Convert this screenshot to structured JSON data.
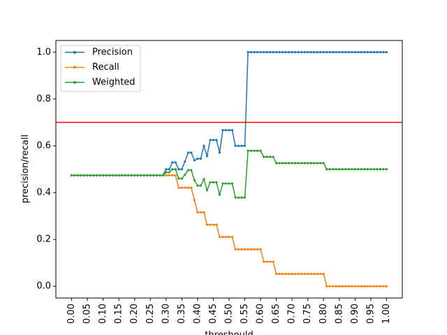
{
  "chart_data": {
    "type": "line",
    "title": "",
    "xlabel": "threshould",
    "ylabel": "precision/recall",
    "xlim": [
      -0.05,
      1.05
    ],
    "ylim": [
      -0.05,
      1.05
    ],
    "x_ticks": [
      0.0,
      0.05,
      0.1,
      0.15,
      0.2,
      0.25,
      0.3,
      0.35,
      0.4,
      0.45,
      0.5,
      0.55,
      0.6,
      0.65,
      0.7,
      0.75,
      0.8,
      0.85,
      0.9,
      0.95,
      1.0
    ],
    "x_tick_labels": [
      "0.00",
      "0.05",
      "0.10",
      "0.15",
      "0.20",
      "0.25",
      "0.30",
      "0.35",
      "0.40",
      "0.45",
      "0.50",
      "0.55",
      "0.60",
      "0.65",
      "0.70",
      "0.75",
      "0.80",
      "0.85",
      "0.90",
      "0.95",
      "1.00"
    ],
    "y_ticks": [
      0.0,
      0.2,
      0.4,
      0.6,
      0.8,
      1.0
    ],
    "y_tick_labels": [
      "0.0",
      "0.2",
      "0.4",
      "0.6",
      "0.8",
      "1.0"
    ],
    "grid": false,
    "legend_position": "top-left",
    "hline": {
      "y": 0.7,
      "color": "#ff0000"
    },
    "x": [
      0.0,
      0.01,
      0.02,
      0.03,
      0.04,
      0.05,
      0.06,
      0.07,
      0.08,
      0.09,
      0.1,
      0.11,
      0.12,
      0.13,
      0.14,
      0.15,
      0.16,
      0.17,
      0.18,
      0.19,
      0.2,
      0.21,
      0.22,
      0.23,
      0.24,
      0.25,
      0.26,
      0.27,
      0.28,
      0.29,
      0.3,
      0.31,
      0.32,
      0.33,
      0.34,
      0.35,
      0.36,
      0.37,
      0.38,
      0.39,
      0.4,
      0.41,
      0.42,
      0.43,
      0.44,
      0.45,
      0.46,
      0.47,
      0.48,
      0.49,
      0.5,
      0.51,
      0.52,
      0.53,
      0.54,
      0.55,
      0.56,
      0.57,
      0.58,
      0.59,
      0.6,
      0.61,
      0.62,
      0.63,
      0.64,
      0.65,
      0.66,
      0.67,
      0.68,
      0.69,
      0.7,
      0.71,
      0.72,
      0.73,
      0.74,
      0.75,
      0.76,
      0.77,
      0.78,
      0.79,
      0.8,
      0.81,
      0.82,
      0.83,
      0.84,
      0.85,
      0.86,
      0.87,
      0.88,
      0.89,
      0.9,
      0.91,
      0.92,
      0.93,
      0.94,
      0.95,
      0.96,
      0.97,
      0.98,
      0.99,
      1.0
    ],
    "series": [
      {
        "name": "Precision",
        "color": "#1f77b4",
        "values": [
          0.474,
          0.474,
          0.474,
          0.474,
          0.474,
          0.474,
          0.474,
          0.474,
          0.474,
          0.474,
          0.474,
          0.474,
          0.474,
          0.474,
          0.474,
          0.474,
          0.474,
          0.474,
          0.474,
          0.474,
          0.474,
          0.474,
          0.474,
          0.474,
          0.474,
          0.474,
          0.474,
          0.474,
          0.474,
          0.474,
          0.5,
          0.5,
          0.529,
          0.529,
          0.5,
          0.5,
          0.533,
          0.571,
          0.571,
          0.538,
          0.545,
          0.545,
          0.6,
          0.556,
          0.625,
          0.625,
          0.625,
          0.571,
          0.667,
          0.667,
          0.667,
          0.667,
          0.6,
          0.6,
          0.6,
          0.6,
          1.0,
          1.0,
          1.0,
          1.0,
          1.0,
          1.0,
          1.0,
          1.0,
          1.0,
          1.0,
          1.0,
          1.0,
          1.0,
          1.0,
          1.0,
          1.0,
          1.0,
          1.0,
          1.0,
          1.0,
          1.0,
          1.0,
          1.0,
          1.0,
          1.0,
          1.0,
          1.0,
          1.0,
          1.0,
          1.0,
          1.0,
          1.0,
          1.0,
          1.0,
          1.0,
          1.0,
          1.0,
          1.0,
          1.0,
          1.0,
          1.0,
          1.0,
          1.0,
          1.0,
          1.0
        ]
      },
      {
        "name": "Recall",
        "color": "#ff7f0e",
        "values": [
          0.474,
          0.474,
          0.474,
          0.474,
          0.474,
          0.474,
          0.474,
          0.474,
          0.474,
          0.474,
          0.474,
          0.474,
          0.474,
          0.474,
          0.474,
          0.474,
          0.474,
          0.474,
          0.474,
          0.474,
          0.474,
          0.474,
          0.474,
          0.474,
          0.474,
          0.474,
          0.474,
          0.474,
          0.474,
          0.474,
          0.474,
          0.474,
          0.474,
          0.474,
          0.421,
          0.421,
          0.421,
          0.421,
          0.421,
          0.368,
          0.316,
          0.316,
          0.316,
          0.263,
          0.263,
          0.263,
          0.263,
          0.211,
          0.211,
          0.211,
          0.211,
          0.211,
          0.158,
          0.158,
          0.158,
          0.158,
          0.158,
          0.158,
          0.158,
          0.158,
          0.158,
          0.105,
          0.105,
          0.105,
          0.105,
          0.053,
          0.053,
          0.053,
          0.053,
          0.053,
          0.053,
          0.053,
          0.053,
          0.053,
          0.053,
          0.053,
          0.053,
          0.053,
          0.053,
          0.053,
          0.053,
          0.0,
          0.0,
          0.0,
          0.0,
          0.0,
          0.0,
          0.0,
          0.0,
          0.0,
          0.0,
          0.0,
          0.0,
          0.0,
          0.0,
          0.0,
          0.0,
          0.0,
          0.0,
          0.0,
          0.0
        ]
      },
      {
        "name": "Weighted",
        "color": "#2ca02c",
        "values": [
          0.474,
          0.474,
          0.474,
          0.474,
          0.474,
          0.474,
          0.474,
          0.474,
          0.474,
          0.474,
          0.474,
          0.474,
          0.474,
          0.474,
          0.474,
          0.474,
          0.474,
          0.474,
          0.474,
          0.474,
          0.474,
          0.474,
          0.474,
          0.474,
          0.474,
          0.474,
          0.474,
          0.474,
          0.474,
          0.474,
          0.487,
          0.487,
          0.5,
          0.5,
          0.46,
          0.46,
          0.477,
          0.496,
          0.496,
          0.453,
          0.43,
          0.43,
          0.458,
          0.41,
          0.444,
          0.444,
          0.444,
          0.391,
          0.439,
          0.439,
          0.439,
          0.439,
          0.379,
          0.379,
          0.379,
          0.379,
          0.579,
          0.579,
          0.579,
          0.579,
          0.579,
          0.553,
          0.553,
          0.553,
          0.553,
          0.526,
          0.526,
          0.526,
          0.526,
          0.526,
          0.526,
          0.526,
          0.526,
          0.526,
          0.526,
          0.526,
          0.526,
          0.526,
          0.526,
          0.526,
          0.526,
          0.5,
          0.5,
          0.5,
          0.5,
          0.5,
          0.5,
          0.5,
          0.5,
          0.5,
          0.5,
          0.5,
          0.5,
          0.5,
          0.5,
          0.5,
          0.5,
          0.5,
          0.5,
          0.5,
          0.5
        ]
      }
    ]
  }
}
